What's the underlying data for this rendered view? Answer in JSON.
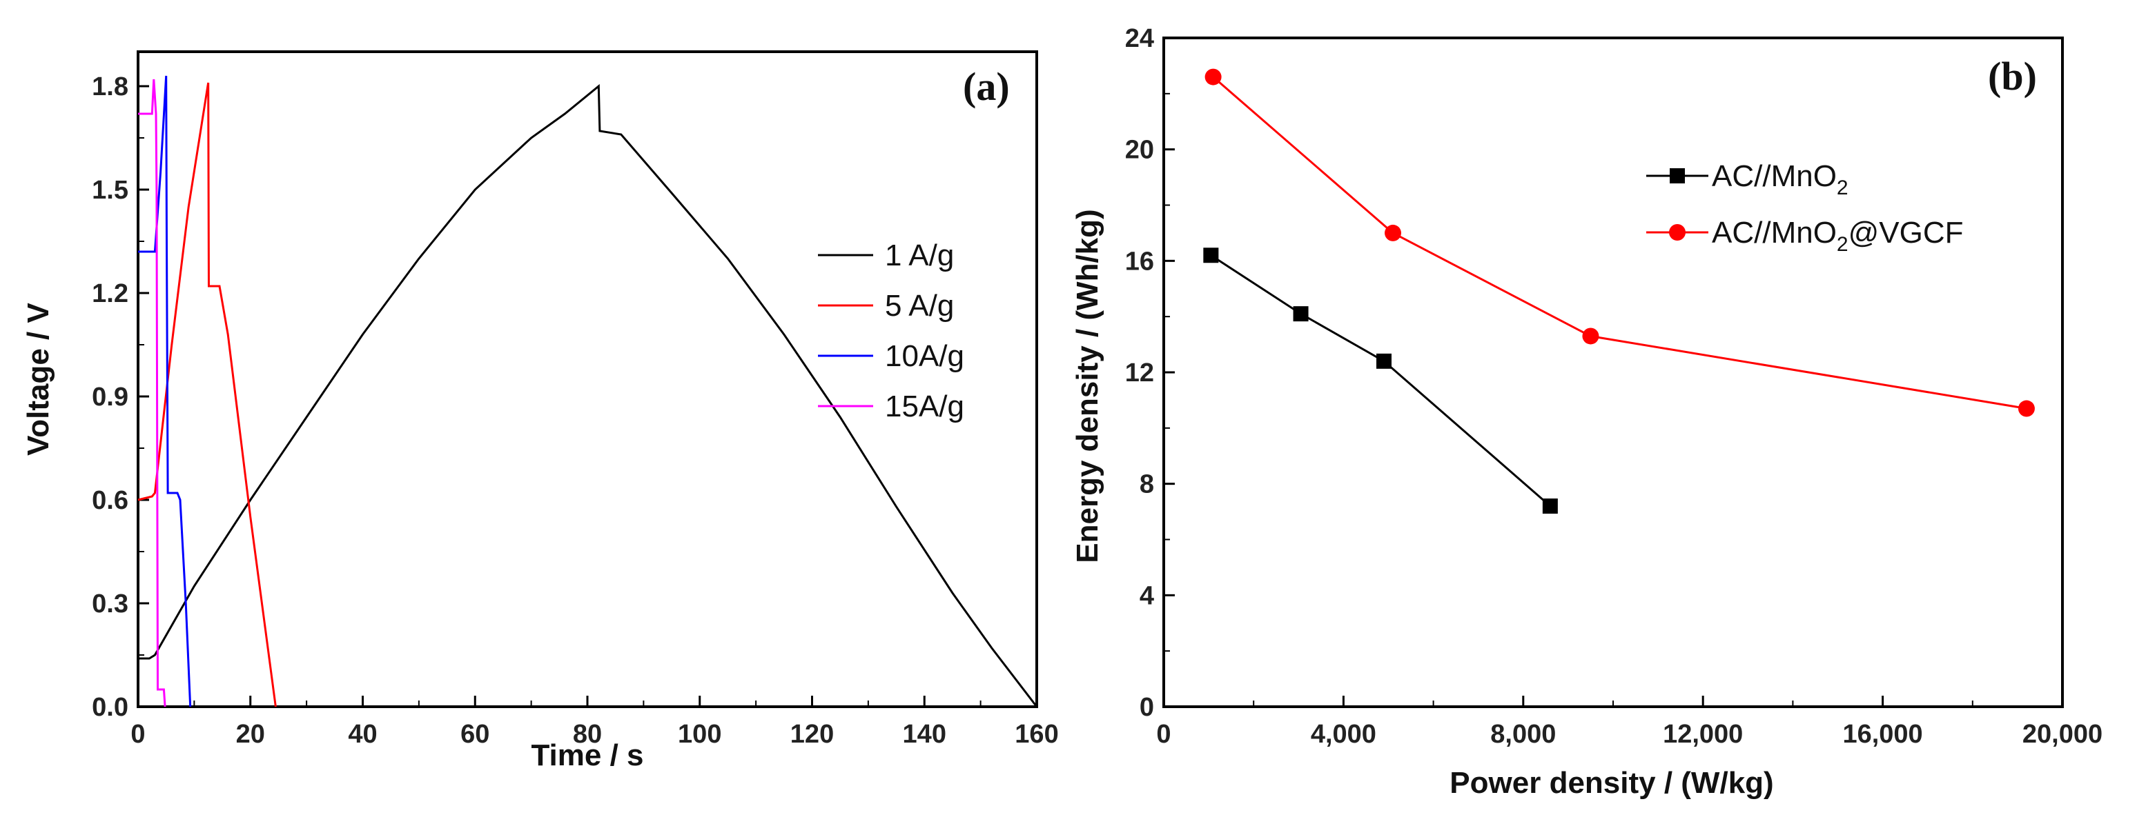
{
  "chart_data": [
    {
      "panel": "(a)",
      "type": "line",
      "xlabel": "Time / s",
      "ylabel": "Voltage / V",
      "xlim": [
        0,
        160
      ],
      "ylim": [
        0,
        1.9
      ],
      "xticks": [
        "0",
        "20",
        "40",
        "60",
        "80",
        "100",
        "120",
        "140",
        "160"
      ],
      "yticks": [
        "0.0",
        "0.3",
        "0.6",
        "0.9",
        "1.2",
        "1.5",
        "1.8"
      ],
      "legend_position": "center-right",
      "series": [
        {
          "name": "1 A/g",
          "color": "#000000",
          "x": [
            0,
            2,
            3,
            10,
            20,
            30,
            40,
            50,
            60,
            70,
            76,
            82,
            82.2,
            86,
            95,
            105,
            115,
            125,
            135,
            145,
            152,
            160
          ],
          "y": [
            0.14,
            0.14,
            0.15,
            0.35,
            0.6,
            0.84,
            1.08,
            1.3,
            1.5,
            1.65,
            1.72,
            1.8,
            1.67,
            1.66,
            1.49,
            1.3,
            1.08,
            0.84,
            0.58,
            0.33,
            0.17,
            0.0
          ]
        },
        {
          "name": "5 A/g",
          "color": "#ff0000",
          "x": [
            0,
            2.5,
            3,
            6,
            9,
            12.5,
            12.6,
            13,
            14.5,
            16,
            20,
            24.5
          ],
          "y": [
            0.6,
            0.61,
            0.62,
            1.05,
            1.45,
            1.81,
            1.22,
            1.22,
            1.22,
            1.08,
            0.55,
            0.0
          ]
        },
        {
          "name": "10A/g",
          "color": "#0000ff",
          "x": [
            0,
            2.5,
            3,
            4,
            5,
            5.1,
            5.3,
            7,
            7.5,
            8.5,
            9.3
          ],
          "y": [
            1.32,
            1.32,
            1.32,
            1.55,
            1.83,
            1.35,
            0.62,
            0.62,
            0.6,
            0.3,
            0.0
          ]
        },
        {
          "name": "15A/g",
          "color": "#ff00ff",
          "x": [
            0,
            2.5,
            2.8,
            3.2,
            3.3,
            3.5,
            4,
            4.6,
            4.8
          ],
          "y": [
            1.72,
            1.72,
            1.82,
            1.72,
            1.5,
            0.05,
            0.05,
            0.05,
            0.0
          ]
        }
      ]
    },
    {
      "panel": "(b)",
      "type": "line",
      "xlabel": "Power density / (W/kg)",
      "ylabel": "Energy density / (Wh/kg)",
      "xlim": [
        0,
        20000
      ],
      "ylim": [
        0,
        24
      ],
      "xticks": [
        "0",
        "4,000",
        "8,000",
        "12,000",
        "16,000",
        "20,000"
      ],
      "yticks": [
        "0",
        "4",
        "8",
        "12",
        "16",
        "20",
        "24"
      ],
      "legend_position": "upper-right",
      "series": [
        {
          "name": "AC//MnO",
          "name_sub": "2",
          "name_suffix": "",
          "color": "#000000",
          "marker": "square",
          "x": [
            1050,
            3050,
            4900,
            8600
          ],
          "y": [
            16.2,
            14.1,
            12.4,
            7.2
          ]
        },
        {
          "name": "AC//MnO",
          "name_sub": "2",
          "name_suffix": "@VGCF",
          "color": "#ff0000",
          "marker": "circle",
          "x": [
            1100,
            5100,
            9500,
            19200
          ],
          "y": [
            22.6,
            17.0,
            13.3,
            10.7
          ]
        }
      ]
    }
  ]
}
